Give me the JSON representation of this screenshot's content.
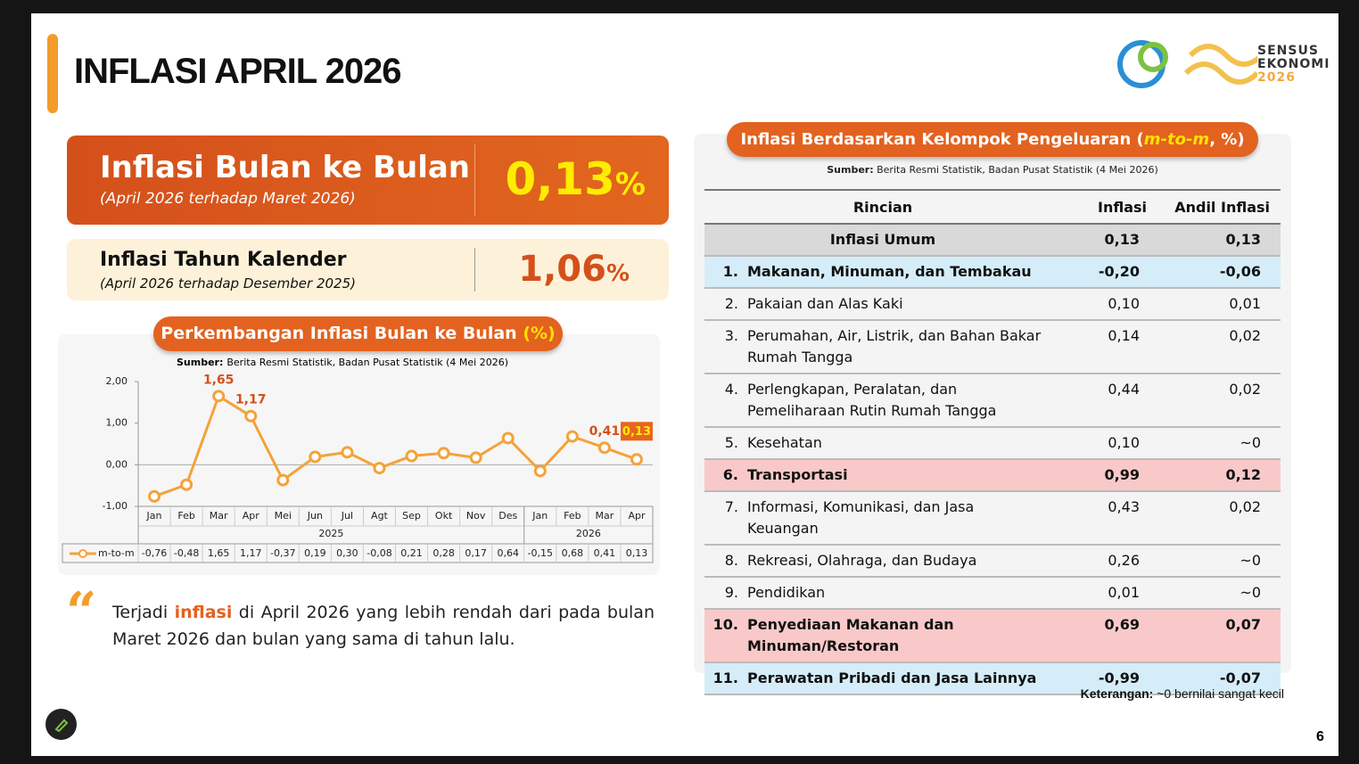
{
  "header": {
    "title": "INFLASI APRIL 2026",
    "logo_lines": [
      "SENSUS",
      "EKONOMI",
      "2026"
    ]
  },
  "monthly_card": {
    "title": "Inflasi Bulan ke Bulan",
    "subtitle": "(April 2026 terhadap Maret 2026)",
    "value": "0,13",
    "unit": "%"
  },
  "calendar_card": {
    "title": "Inflasi Tahun Kalender",
    "subtitle": "(April 2026 terhadap Desember 2025)",
    "value": "1,06",
    "unit": "%"
  },
  "chart_data": {
    "type": "line",
    "title": "Perkembangan Inflasi Bulan ke Bulan",
    "title_unit": "(%)",
    "source_label": "Sumber:",
    "source": "Berita Resmi Statistik, Badan Pusat Statistik (4 Mei 2026)",
    "category_groups": [
      {
        "label": "2025",
        "categories": [
          "Jan",
          "Feb",
          "Mar",
          "Apr",
          "Mei",
          "Jun",
          "Jul",
          "Agt",
          "Sep",
          "Okt",
          "Nov",
          "Des"
        ]
      },
      {
        "label": "2026",
        "categories": [
          "Jan",
          "Feb",
          "Mar",
          "Apr"
        ]
      }
    ],
    "series": [
      {
        "name": "m-to-m",
        "color": "#f4a23a",
        "values": [
          -0.76,
          -0.48,
          1.65,
          1.17,
          -0.37,
          0.19,
          0.3,
          -0.08,
          0.21,
          0.28,
          0.17,
          0.64,
          -0.15,
          0.68,
          0.41,
          0.13
        ],
        "value_labels": [
          "-0,76",
          "-0,48",
          "1,65",
          "1,17",
          "-0,37",
          "0,19",
          "0,30",
          "-0,08",
          "0,21",
          "0,28",
          "0,17",
          "0,64",
          "-0,15",
          "0,68",
          "0,41",
          "0,13"
        ]
      }
    ],
    "labeled_points": [
      2,
      3,
      14,
      15
    ],
    "highlight_last": true,
    "ylim": [
      -1,
      2
    ],
    "yticks": [
      {
        "value": -1,
        "label": "-1,00"
      },
      {
        "value": 0,
        "label": "0,00"
      },
      {
        "value": 1,
        "label": "1,00"
      },
      {
        "value": 2,
        "label": "2,00"
      }
    ]
  },
  "quote": {
    "parts": [
      "Terjadi ",
      "inflasi",
      " di April 2026 yang lebih rendah dari pada bulan Maret 2026 dan bulan yang sama di tahun lalu."
    ]
  },
  "table": {
    "title_parts": [
      "Inflasi Berdasarkan Kelompok Pengeluaran (",
      "m-to-m",
      ", %)"
    ],
    "source_label": "Sumber:",
    "source": "Berita Resmi Statistik, Badan Pusat Statistik (4 Mei 2026)",
    "columns": [
      "Rincian",
      "Inflasi",
      "Andil Inflasi"
    ],
    "rows": [
      {
        "item": "Inflasi Umum",
        "inflasi": "0,13",
        "andil": "0,13",
        "style": "total"
      },
      {
        "no": "1.",
        "item": "Makanan, Minuman, dan Tembakau",
        "inflasi": "-0,20",
        "andil": "-0,06",
        "style": "blue"
      },
      {
        "no": "2.",
        "item": "Pakaian dan Alas Kaki",
        "inflasi": "0,10",
        "andil": "0,01",
        "style": "plain"
      },
      {
        "no": "3.",
        "item": "Perumahan, Air, Listrik, dan Bahan Bakar Rumah Tangga",
        "inflasi": "0,14",
        "andil": "0,02",
        "style": "plain"
      },
      {
        "no": "4.",
        "item": "Perlengkapan, Peralatan, dan Pemeliharaan Rutin Rumah Tangga",
        "inflasi": "0,44",
        "andil": "0,02",
        "style": "plain"
      },
      {
        "no": "5.",
        "item": "Kesehatan",
        "inflasi": "0,10",
        "andil": "~0",
        "style": "plain"
      },
      {
        "no": "6.",
        "item": "Transportasi",
        "inflasi": "0,99",
        "andil": "0,12",
        "style": "red"
      },
      {
        "no": "7.",
        "item": "Informasi, Komunikasi, dan Jasa Keuangan",
        "inflasi": "0,43",
        "andil": "0,02",
        "style": "plain"
      },
      {
        "no": "8.",
        "item": "Rekreasi, Olahraga, dan Budaya",
        "inflasi": "0,26",
        "andil": "~0",
        "style": "plain"
      },
      {
        "no": "9.",
        "item": "Pendidikan",
        "inflasi": "0,01",
        "andil": "~0",
        "style": "plain"
      },
      {
        "no": "10.",
        "item": "Penyediaan Makanan dan Minuman/Restoran",
        "inflasi": "0,69",
        "andil": "0,07",
        "style": "red"
      },
      {
        "no": "11.",
        "item": "Perawatan Pribadi dan Jasa Lainnya",
        "inflasi": "-0,99",
        "andil": "-0,07",
        "style": "blue"
      }
    ]
  },
  "note": {
    "label": "Keterangan:",
    "text": " ~0 bernilai sangat kecil"
  },
  "page_number": "6"
}
